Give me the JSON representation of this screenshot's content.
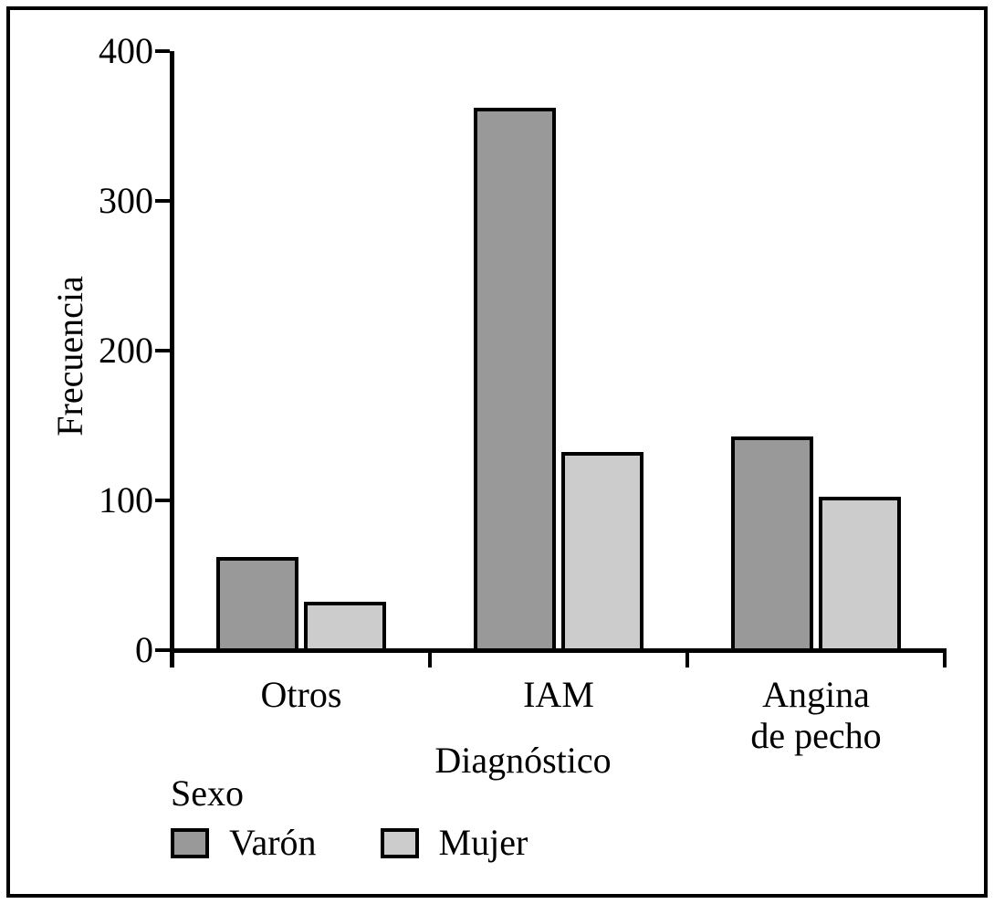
{
  "figure": {
    "background_color": "#ffffff",
    "frame_color": "#000000"
  },
  "chart_data": {
    "type": "bar",
    "categories": [
      "Otros",
      "IAM",
      "Angina\nde pecho"
    ],
    "series": [
      {
        "name": "Varón",
        "color": "#999999",
        "values": [
          60,
          360,
          140
        ]
      },
      {
        "name": "Mujer",
        "color": "#cccccc",
        "values": [
          30,
          130,
          100
        ]
      }
    ],
    "xlabel": "Diagnóstico",
    "ylabel": "Frecuencia",
    "ylim": [
      0,
      400
    ],
    "yticks": [
      0,
      100,
      200,
      300,
      400
    ],
    "legend_title": "Sexo",
    "legend_position": "bottom-left",
    "grid": false,
    "bar_outline_color": "#000000",
    "axis_color": "#000000"
  }
}
